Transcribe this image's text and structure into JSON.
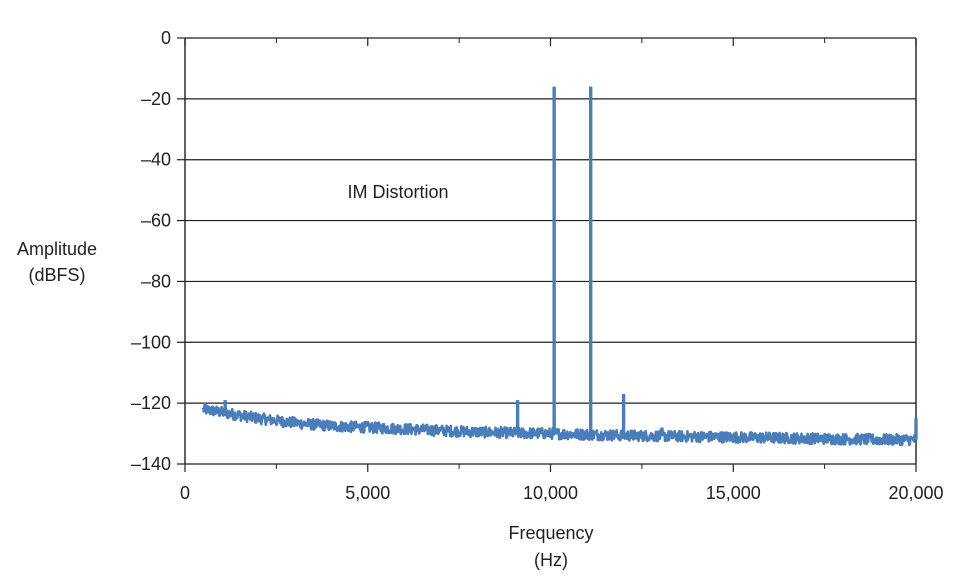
{
  "chart_data": {
    "type": "line",
    "title": "",
    "xlabel_line1": "Frequency",
    "xlabel_line2": "(Hz)",
    "ylabel_line1": "Amplitude",
    "ylabel_line2": "(dBFS)",
    "annotation": "IM Distortion",
    "xlim": [
      0,
      20000
    ],
    "ylim": [
      -140,
      0
    ],
    "x_ticks": [
      0,
      5000,
      10000,
      15000,
      20000
    ],
    "x_tick_labels": [
      "0",
      "5,000",
      "10,000",
      "15,000",
      "20,000"
    ],
    "y_ticks": [
      0,
      -20,
      -40,
      -60,
      -80,
      -100,
      -120,
      -140
    ],
    "y_tick_labels": [
      "0",
      "–20",
      "–40",
      "–60",
      "–80",
      "–100",
      "–120",
      "–140"
    ],
    "grid": "horizontal",
    "line_color": "#4a7ebb",
    "series": [
      {
        "noise_floor": {
          "x": [
            500,
            1000,
            2000,
            3000,
            4000,
            5000,
            6000,
            7000,
            8000,
            9000,
            10000,
            11000,
            12000,
            13000,
            14000,
            15000,
            16000,
            17000,
            18000,
            19000,
            20000
          ],
          "y": [
            -122,
            -123,
            -125,
            -126.5,
            -127.5,
            -128,
            -128.5,
            -129,
            -129.5,
            -129.8,
            -130,
            -130.3,
            -130.6,
            -130.8,
            -131,
            -131.2,
            -131.4,
            -131.6,
            -131.8,
            -132,
            -132
          ]
        },
        "peaks": [
          {
            "x": 1100,
            "y": -119
          },
          {
            "x": 9100,
            "y": -119
          },
          {
            "x": 10100,
            "y": -16
          },
          {
            "x": 11100,
            "y": -16
          },
          {
            "x": 12000,
            "y": -117
          },
          {
            "x": 13050,
            "y": -128
          },
          {
            "x": 20000,
            "y": -125
          }
        ]
      }
    ]
  }
}
